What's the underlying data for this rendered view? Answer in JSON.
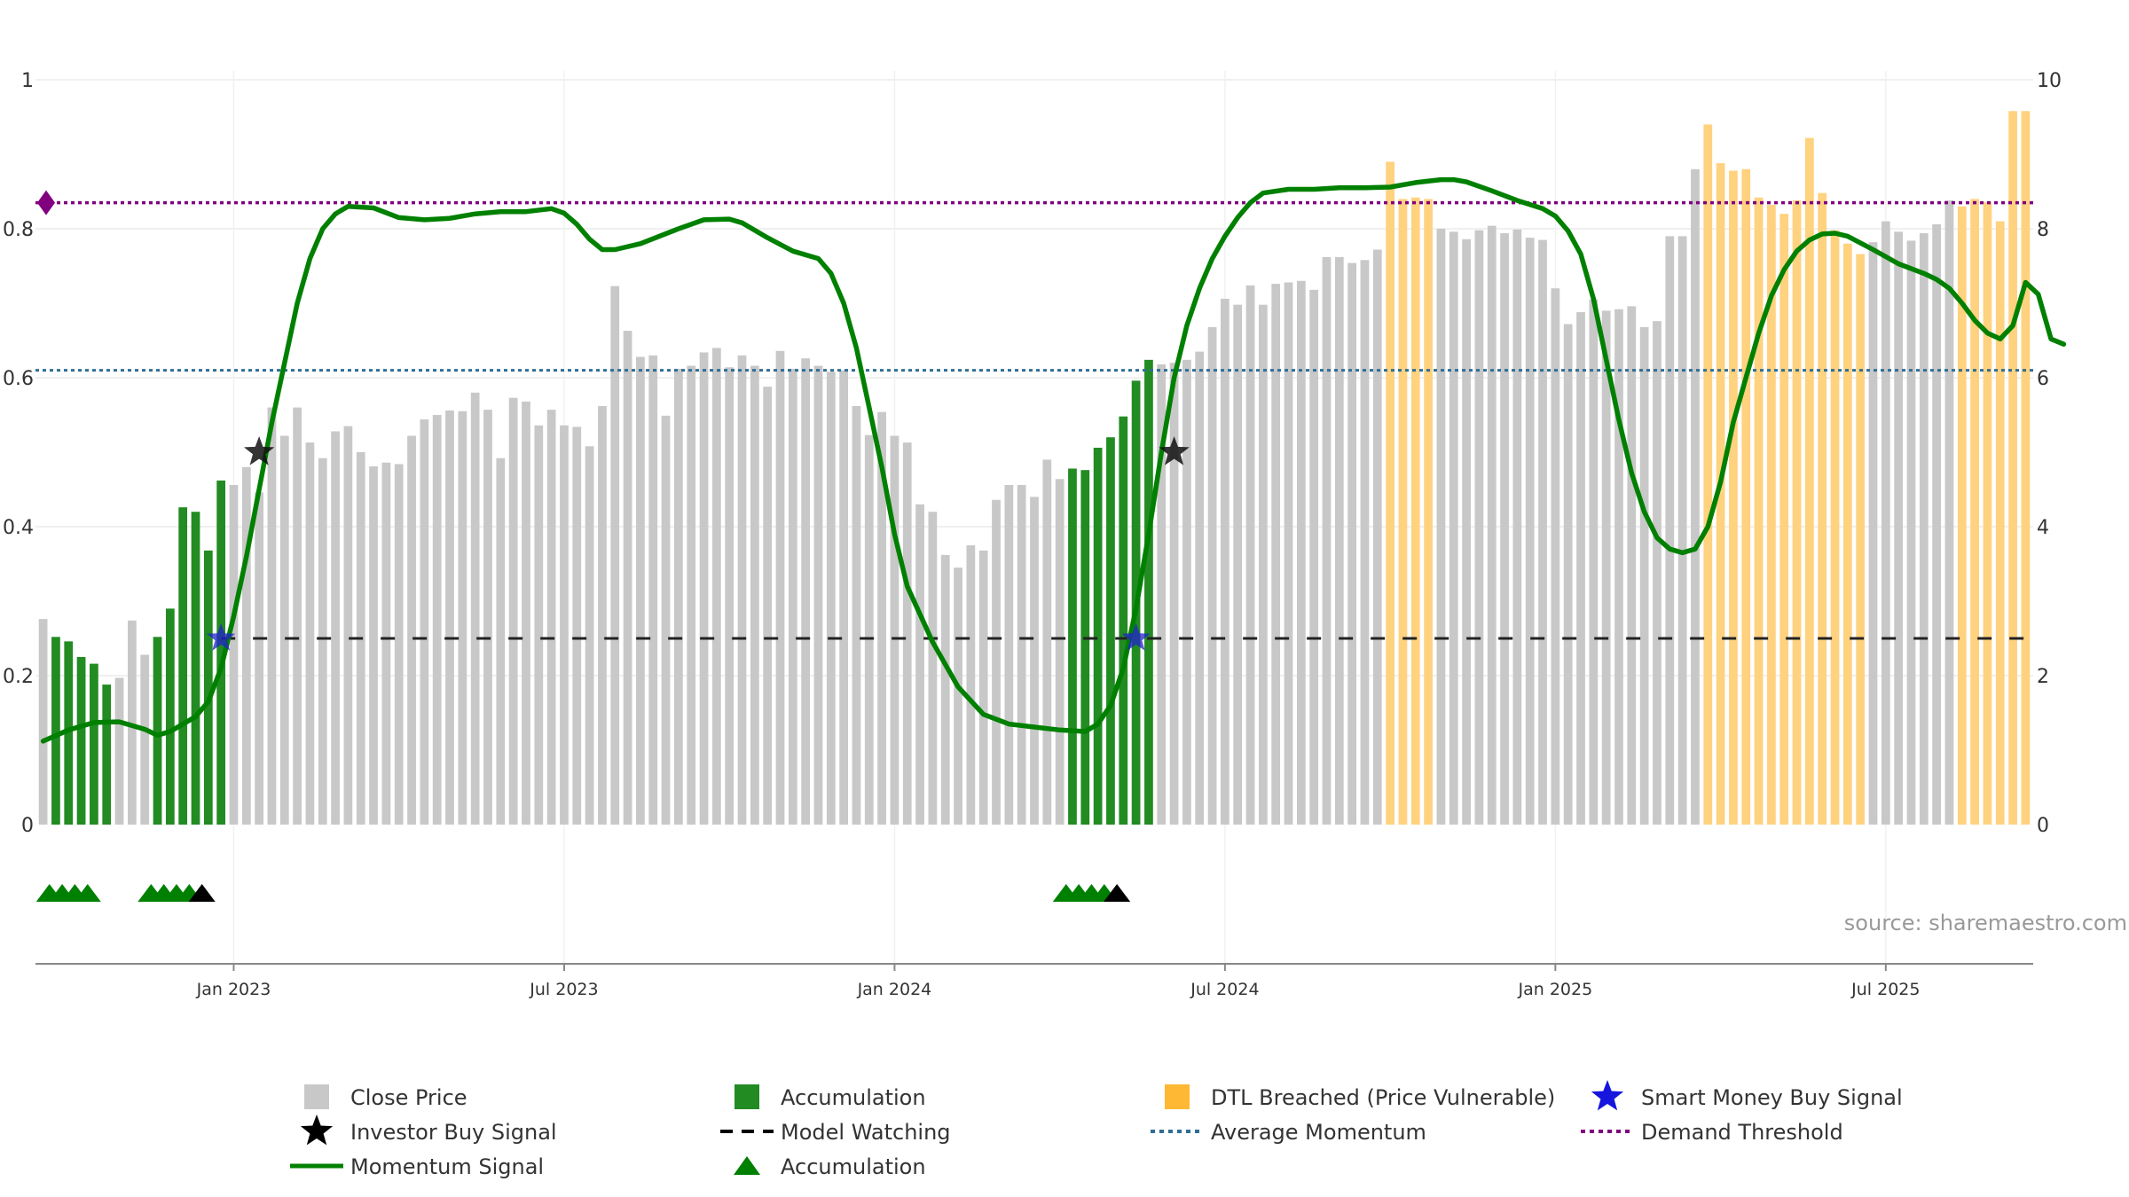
{
  "chart_data": {
    "type": "bar",
    "title": "",
    "xlabel": "",
    "ylabel": "",
    "left_axis": {
      "ylim": [
        0,
        1
      ],
      "ticks": [
        {
          "value": 0,
          "label": "0"
        },
        {
          "value": 0.2,
          "label": "0.2"
        },
        {
          "value": 0.4,
          "label": "0.4"
        },
        {
          "value": 0.6,
          "label": "0.6"
        },
        {
          "value": 0.8,
          "label": "0.8"
        },
        {
          "value": 1,
          "label": "1"
        }
      ]
    },
    "right_axis": {
      "ylim": [
        0,
        10
      ],
      "ticks": [
        {
          "value": 0,
          "label": "0"
        },
        {
          "value": 2,
          "label": "2"
        },
        {
          "value": 4,
          "label": "4"
        },
        {
          "value": 6,
          "label": "6"
        },
        {
          "value": 8,
          "label": "8"
        },
        {
          "value": 10,
          "label": "10"
        }
      ]
    },
    "x_ticks": [
      {
        "week": 15,
        "label": "Jan 2023"
      },
      {
        "week": 41,
        "label": "Jul 2023"
      },
      {
        "week": 67,
        "label": "Jan 2024"
      },
      {
        "week": 93,
        "label": "Jul 2024"
      },
      {
        "week": 119,
        "label": "Jan 2025"
      },
      {
        "week": 145,
        "label": "Jul 2025"
      }
    ],
    "x_range": [
      -0.6,
      156.6
    ],
    "close_price": [
      2.76,
      2.52,
      2.46,
      2.25,
      2.16,
      1.88,
      1.97,
      2.74,
      2.28,
      2.52,
      2.9,
      4.26,
      4.2,
      3.68,
      4.62,
      4.56,
      4.8,
      4.46,
      5.6,
      5.22,
      5.6,
      5.13,
      4.92,
      5.28,
      5.35,
      5.0,
      4.81,
      4.86,
      4.84,
      5.22,
      5.44,
      5.5,
      5.56,
      5.55,
      5.8,
      5.57,
      4.92,
      5.73,
      5.68,
      5.36,
      5.57,
      5.36,
      5.34,
      5.08,
      5.62,
      7.23,
      6.63,
      6.28,
      6.3,
      5.49,
      6.12,
      6.16,
      6.34,
      6.4,
      6.14,
      6.3,
      6.16,
      5.88,
      6.36,
      6.12,
      6.26,
      6.16,
      6.08,
      6.1,
      5.62,
      5.23,
      5.54,
      5.22,
      5.13,
      4.3,
      4.2,
      3.62,
      3.45,
      3.75,
      3.68,
      4.36,
      4.56,
      4.56,
      4.4,
      4.9,
      4.64,
      4.78,
      4.76,
      5.06,
      5.2,
      5.48,
      5.96,
      6.24,
      6.18,
      6.2,
      6.24,
      6.35,
      6.68,
      7.06,
      6.98,
      7.24,
      6.98,
      7.26,
      7.28,
      7.3,
      7.18,
      7.62,
      7.62,
      7.54,
      7.58,
      7.72,
      8.9,
      8.4,
      8.42,
      8.4,
      8.0,
      7.96,
      7.86,
      7.98,
      8.04,
      7.94,
      7.99,
      7.88,
      7.85,
      7.2,
      6.72,
      6.88,
      7.05,
      6.9,
      6.92,
      6.96,
      6.68,
      6.76,
      7.9,
      7.9,
      8.8,
      9.4,
      8.88,
      8.78,
      8.8,
      8.42,
      8.32,
      8.2,
      8.38,
      9.22,
      8.48,
      7.98,
      7.8,
      7.66,
      7.82,
      8.1,
      7.96,
      7.84,
      7.94,
      8.06,
      8.38,
      8.3,
      8.4,
      8.36,
      8.1,
      9.58,
      9.58
    ],
    "accumulation_weeks": [
      1,
      2,
      3,
      4,
      5,
      9,
      10,
      11,
      12,
      13,
      14,
      81,
      82,
      83,
      84,
      85,
      86,
      87
    ],
    "dtl_breached_weeks": [
      106,
      107,
      108,
      109,
      131,
      132,
      133,
      134,
      135,
      136,
      137,
      138,
      139,
      140,
      141,
      142,
      143,
      151,
      152,
      153,
      154,
      155,
      156
    ],
    "momentum_signal": [
      [
        0,
        0.112
      ],
      [
        2,
        0.127
      ],
      [
        4,
        0.137
      ],
      [
        6,
        0.138
      ],
      [
        8,
        0.128
      ],
      [
        9,
        0.12
      ],
      [
        10,
        0.125
      ],
      [
        12,
        0.145
      ],
      [
        13,
        0.165
      ],
      [
        14,
        0.21
      ],
      [
        15,
        0.28
      ],
      [
        16,
        0.36
      ],
      [
        17,
        0.45
      ],
      [
        18,
        0.54
      ],
      [
        19,
        0.62
      ],
      [
        20,
        0.7
      ],
      [
        21,
        0.76
      ],
      [
        22,
        0.8
      ],
      [
        23,
        0.82
      ],
      [
        24,
        0.83
      ],
      [
        26,
        0.828
      ],
      [
        28,
        0.815
      ],
      [
        30,
        0.812
      ],
      [
        32,
        0.814
      ],
      [
        34,
        0.82
      ],
      [
        36,
        0.823
      ],
      [
        38,
        0.823
      ],
      [
        40,
        0.827
      ],
      [
        41,
        0.821
      ],
      [
        42,
        0.806
      ],
      [
        43,
        0.786
      ],
      [
        44,
        0.772
      ],
      [
        45,
        0.772
      ],
      [
        47,
        0.78
      ],
      [
        50,
        0.8
      ],
      [
        52,
        0.812
      ],
      [
        54,
        0.813
      ],
      [
        55,
        0.808
      ],
      [
        57,
        0.788
      ],
      [
        59,
        0.77
      ],
      [
        61,
        0.76
      ],
      [
        62,
        0.74
      ],
      [
        63,
        0.7
      ],
      [
        64,
        0.64
      ],
      [
        65,
        0.56
      ],
      [
        66,
        0.48
      ],
      [
        67,
        0.39
      ],
      [
        68,
        0.32
      ],
      [
        70,
        0.245
      ],
      [
        72,
        0.185
      ],
      [
        74,
        0.148
      ],
      [
        76,
        0.135
      ],
      [
        78,
        0.131
      ],
      [
        80,
        0.127
      ],
      [
        82,
        0.125
      ],
      [
        83,
        0.135
      ],
      [
        84,
        0.16
      ],
      [
        85,
        0.21
      ],
      [
        86,
        0.29
      ],
      [
        87,
        0.39
      ],
      [
        88,
        0.5
      ],
      [
        89,
        0.6
      ],
      [
        90,
        0.67
      ],
      [
        91,
        0.72
      ],
      [
        92,
        0.76
      ],
      [
        93,
        0.79
      ],
      [
        94,
        0.815
      ],
      [
        95,
        0.835
      ],
      [
        96,
        0.848
      ],
      [
        98,
        0.853
      ],
      [
        100,
        0.853
      ],
      [
        102,
        0.855
      ],
      [
        104,
        0.855
      ],
      [
        106,
        0.856
      ],
      [
        108,
        0.862
      ],
      [
        110,
        0.866
      ],
      [
        111,
        0.866
      ],
      [
        112,
        0.863
      ],
      [
        114,
        0.851
      ],
      [
        116,
        0.838
      ],
      [
        118,
        0.827
      ],
      [
        119,
        0.817
      ],
      [
        120,
        0.797
      ],
      [
        121,
        0.766
      ],
      [
        122,
        0.706
      ],
      [
        123,
        0.624
      ],
      [
        124,
        0.543
      ],
      [
        125,
        0.472
      ],
      [
        126,
        0.42
      ],
      [
        127,
        0.385
      ],
      [
        128,
        0.37
      ],
      [
        129,
        0.365
      ],
      [
        130,
        0.37
      ],
      [
        131,
        0.4
      ],
      [
        132,
        0.46
      ],
      [
        133,
        0.54
      ],
      [
        134,
        0.6
      ],
      [
        135,
        0.66
      ],
      [
        136,
        0.71
      ],
      [
        137,
        0.745
      ],
      [
        138,
        0.77
      ],
      [
        139,
        0.785
      ],
      [
        140,
        0.793
      ],
      [
        141,
        0.794
      ],
      [
        142,
        0.79
      ],
      [
        144,
        0.772
      ],
      [
        146,
        0.753
      ],
      [
        148,
        0.74
      ],
      [
        149,
        0.732
      ],
      [
        150,
        0.72
      ],
      [
        151,
        0.7
      ],
      [
        152,
        0.677
      ],
      [
        153,
        0.66
      ],
      [
        154,
        0.652
      ],
      [
        155,
        0.67
      ],
      [
        156,
        0.728
      ],
      [
        157,
        0.712
      ],
      [
        158,
        0.652
      ],
      [
        159,
        0.645
      ]
    ],
    "average_momentum": 0.61,
    "demand_threshold": 0.835,
    "model_watching_level": 0.25,
    "model_watching_start_week": 14,
    "investor_buy_signals": [
      {
        "week": 17,
        "value": 0.5
      },
      {
        "week": 89,
        "value": 0.5
      }
    ],
    "smart_money_buy_signals": [
      {
        "week": 14,
        "value": 0.25
      },
      {
        "week": 86,
        "value": 0.25
      }
    ],
    "accumulation_triangles": [
      0.5,
      1.5,
      2.5,
      3.5,
      8.5,
      9.5,
      10.5,
      11.5,
      80.5,
      81.5,
      82.5,
      83.5
    ],
    "investor_triangles": [
      12.5,
      84.5
    ],
    "source": "source: sharemaestro.com",
    "legend": [
      {
        "key": "close",
        "label": "Close Price"
      },
      {
        "key": "accum_bar",
        "label": "Accumulation"
      },
      {
        "key": "dtl",
        "label": "DTL Breached (Price Vulnerable)"
      },
      {
        "key": "smart",
        "label": "Smart Money Buy Signal"
      },
      {
        "key": "investor",
        "label": "Investor Buy Signal"
      },
      {
        "key": "watching",
        "label": "Model Watching"
      },
      {
        "key": "avgmom",
        "label": "Average Momentum"
      },
      {
        "key": "demand",
        "label": "Demand Threshold"
      },
      {
        "key": "momentum",
        "label": "Momentum Signal"
      },
      {
        "key": "accum_tri",
        "label": "Accumulation"
      }
    ],
    "colors": {
      "close": "#c8c8c8",
      "accumulation": "#228b22",
      "dtl": "#ffd27f",
      "momentum": "#008000",
      "average": "#2f6e96",
      "demand": "#800080",
      "watching": "#222222",
      "smart": "#2222cc",
      "investor": "#111111",
      "grid": "#ececec"
    }
  }
}
